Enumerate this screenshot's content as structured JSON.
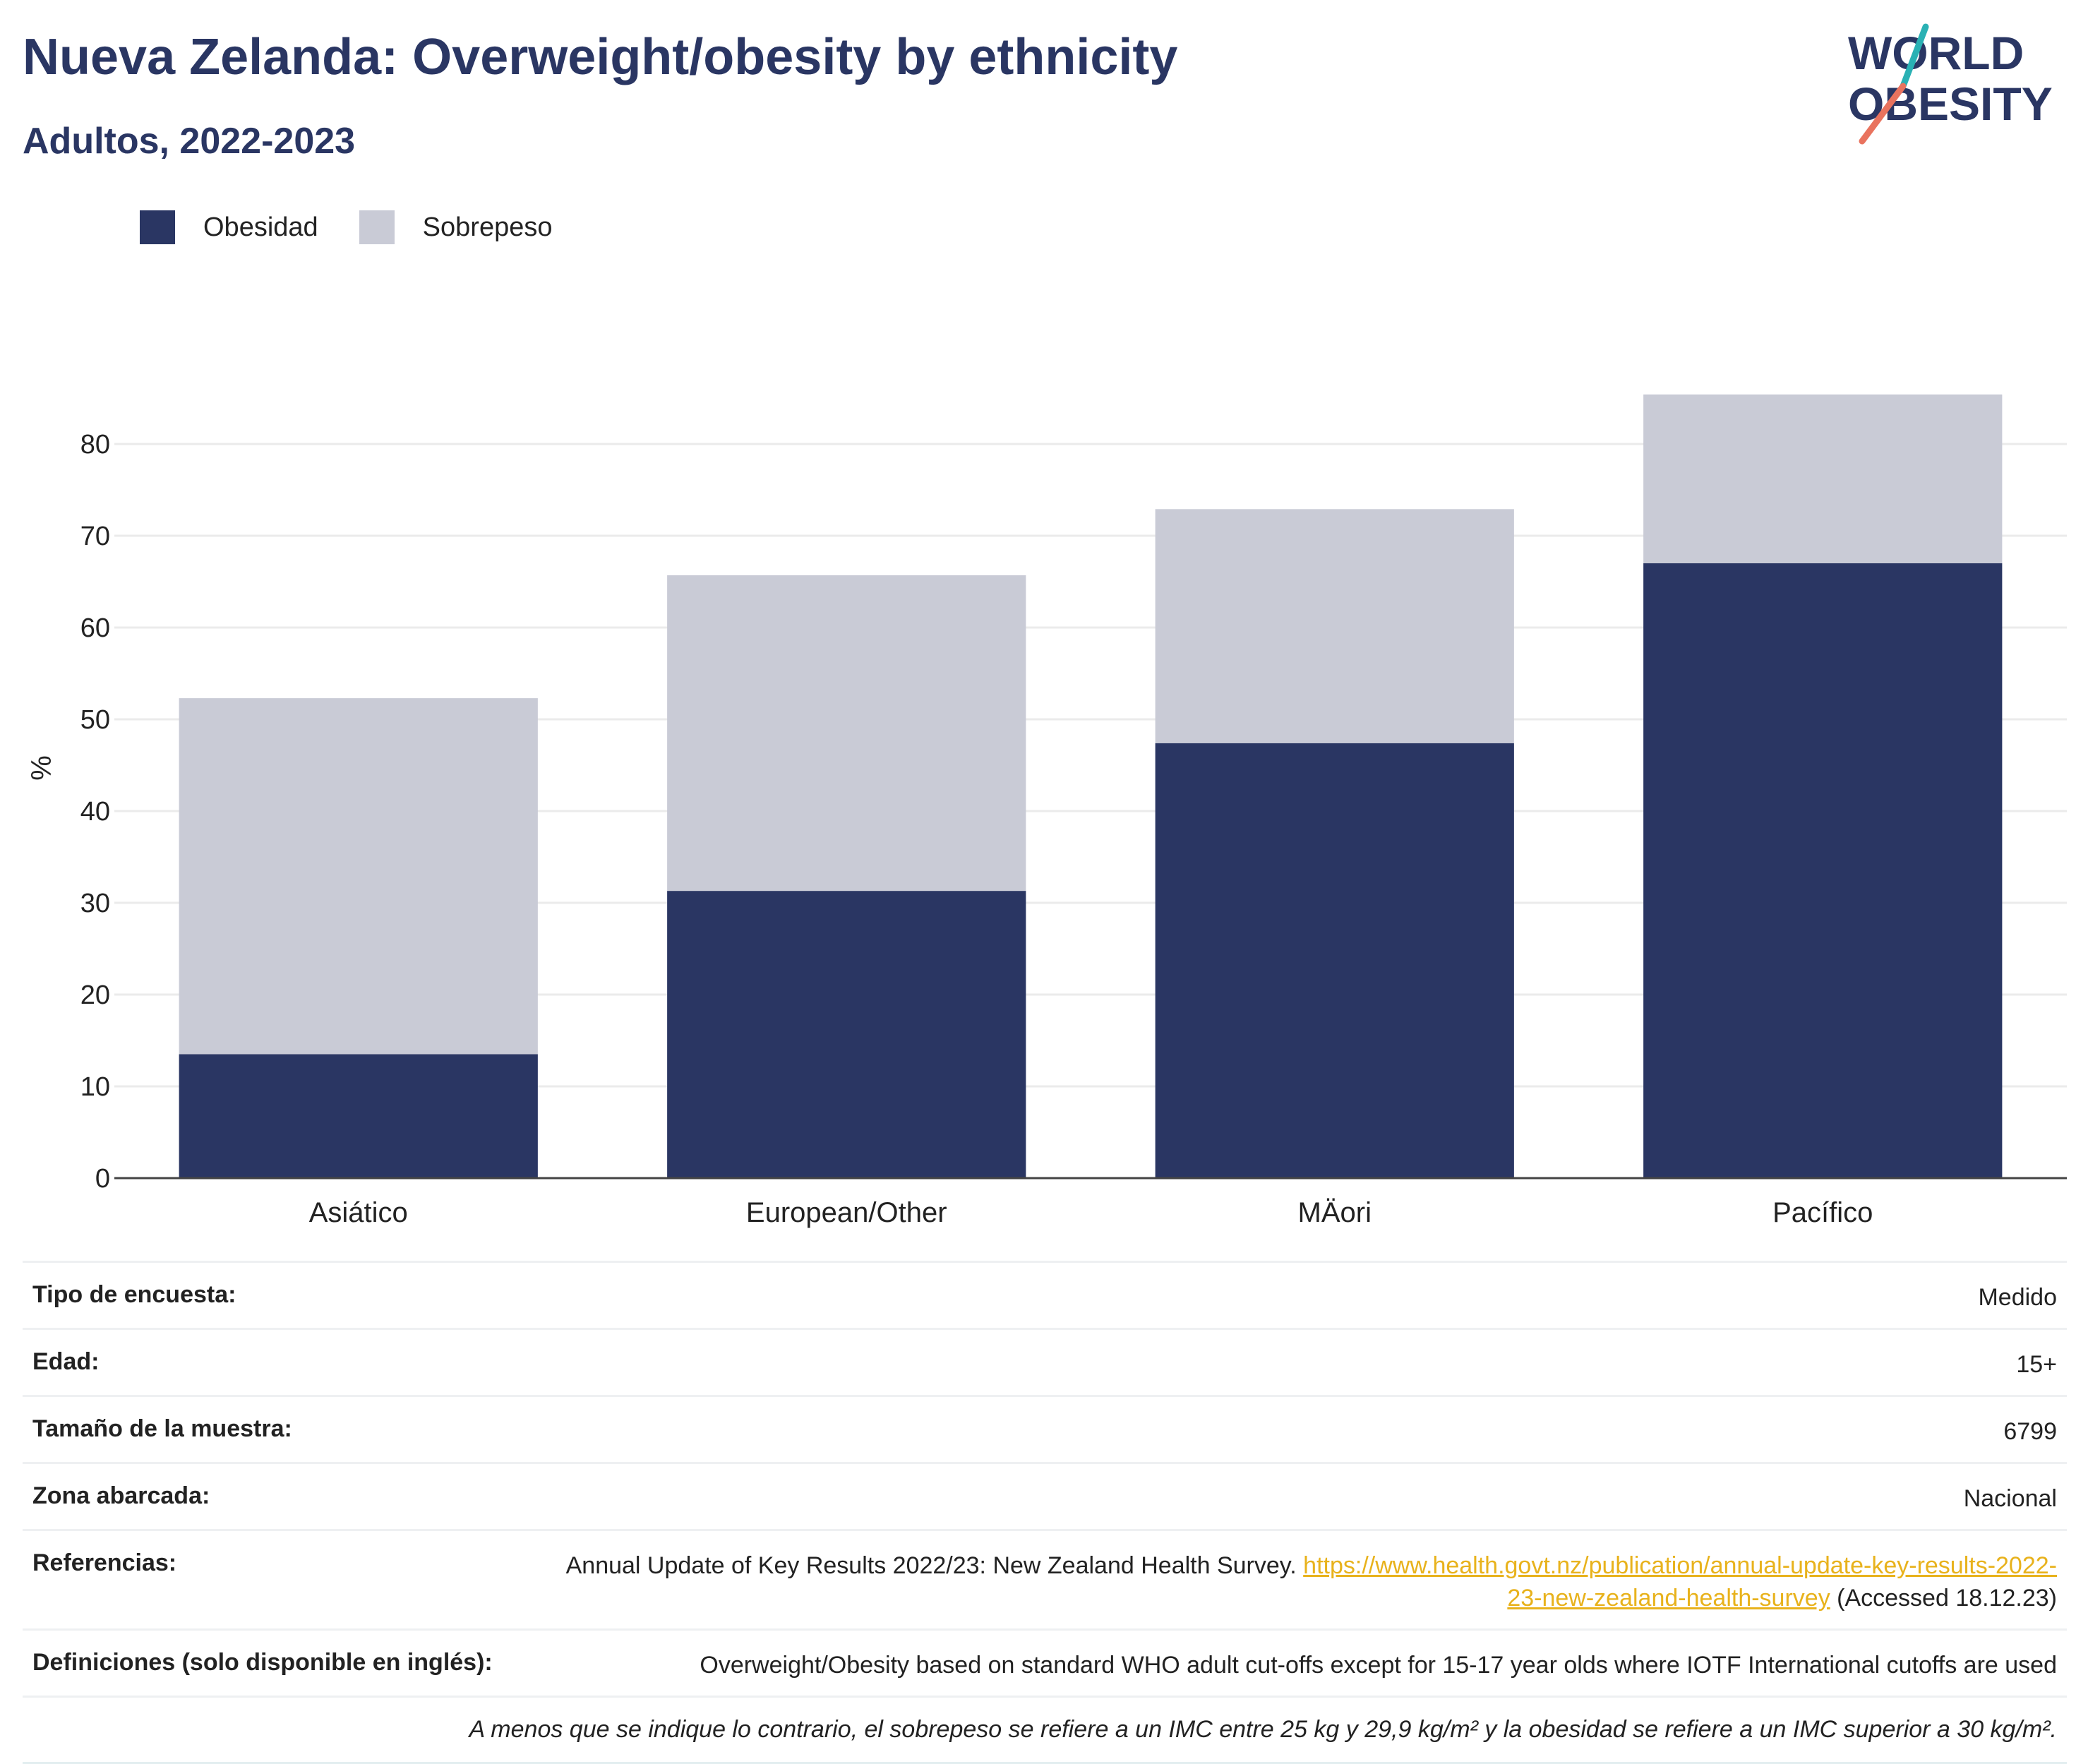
{
  "header": {
    "title": "Nueva Zelanda: Overweight/obesity by ethnicity",
    "subtitle": "Adultos, 2022-2023",
    "logo_line1": "WORLD",
    "logo_line2": "OBESITY"
  },
  "colors": {
    "obesity": "#2a3663",
    "overweight": "#c9cbd6",
    "title": "#2a3663",
    "link": "#e8b21c",
    "logo_teal": "#2ab1b4",
    "logo_coral": "#e9735e"
  },
  "legend": [
    {
      "label": "Obesidad",
      "color": "#2a3663"
    },
    {
      "label": "Sobrepeso",
      "color": "#c9cbd6"
    }
  ],
  "chart_data": {
    "type": "bar",
    "stacked": true,
    "categories": [
      "Asiático",
      "European/Other",
      "MÄori",
      "Pacífico"
    ],
    "series": [
      {
        "name": "Obesidad",
        "values": [
          13.5,
          31.3,
          47.4,
          67.0
        ]
      },
      {
        "name": "Sobrepeso",
        "values": [
          38.8,
          34.4,
          25.5,
          18.4
        ]
      }
    ],
    "ylabel": "%",
    "yticks": [
      0,
      10,
      20,
      30,
      40,
      50,
      60,
      70,
      80
    ],
    "ylim": [
      0,
      90
    ],
    "grid": true,
    "legend_position": "top-left"
  },
  "metadata": [
    {
      "key": "Tipo de encuesta:",
      "value": "Medido"
    },
    {
      "key": "Edad:",
      "value": "15+"
    },
    {
      "key": "Tamaño de la muestra:",
      "value": "6799"
    },
    {
      "key": "Zona abarcada:",
      "value": "Nacional"
    }
  ],
  "references": {
    "key": "Referencias:",
    "text": "Annual Update of Key Results 2022/23: New Zealand Health Survey. ",
    "link": "https://www.health.govt.nz/publication/annual-update-key-results-2022-23-new-zealand-health-survey",
    "accessed": " (Accessed 18.12.23)"
  },
  "definitions": {
    "key": "Definiciones (solo disponible en inglés):",
    "value": "Overweight/Obesity based on standard WHO adult cut-offs except for 15-17 year olds where IOTF International cutoffs are used"
  },
  "footnote": "A menos que se indique lo contrario, el sobrepeso se refiere a un IMC entre 25 kg y 29,9 kg/m² y la obesidad se refiere a un IMC superior a 30 kg/m²."
}
